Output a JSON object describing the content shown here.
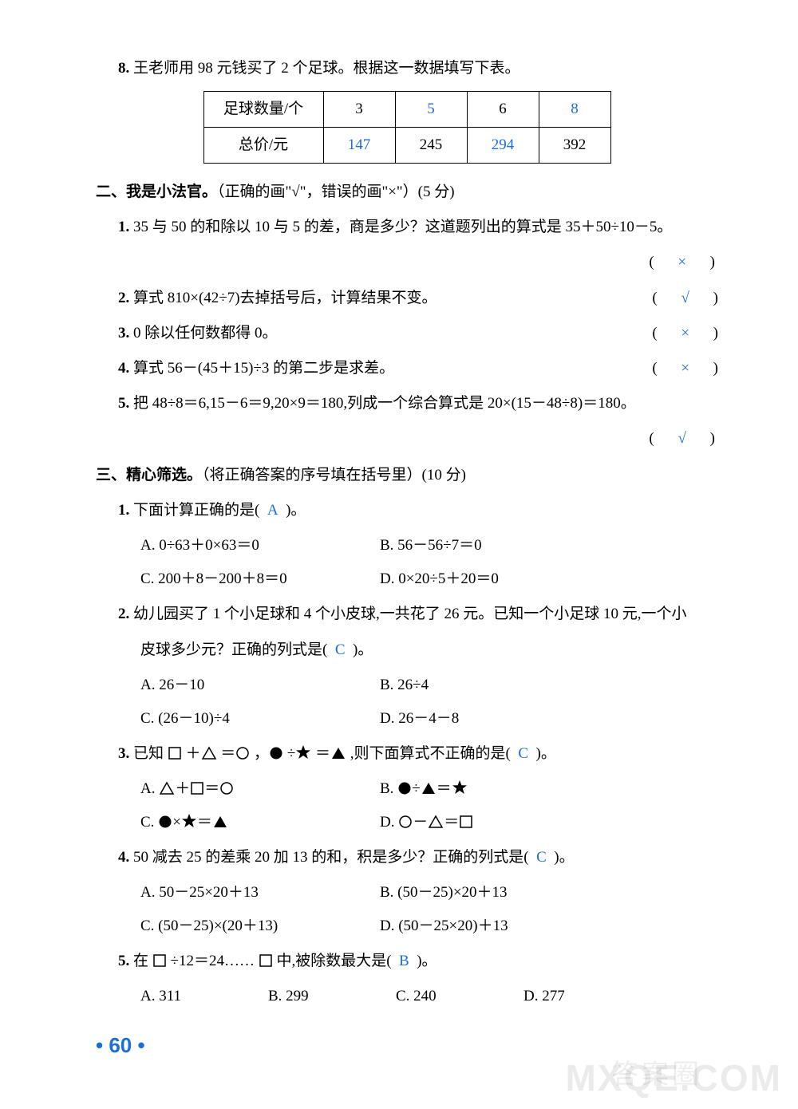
{
  "q8": {
    "num": "8.",
    "text": "王老师用 98 元钱买了 2 个足球。根据这一数据填写下表。",
    "table": {
      "row1_head": "足球数量/个",
      "row2_head": "总价/元",
      "cells": [
        {
          "qty": "3",
          "price": "147",
          "qty_blue": false,
          "price_blue": true
        },
        {
          "qty": "5",
          "price": "245",
          "qty_blue": true,
          "price_blue": false
        },
        {
          "qty": "6",
          "price": "294",
          "qty_blue": false,
          "price_blue": true
        },
        {
          "qty": "8",
          "price": "392",
          "qty_blue": true,
          "price_blue": false
        }
      ]
    }
  },
  "sec2": {
    "title": "二、我是小法官。",
    "subtitle": "（正确的画\"√\"，错误的画\"×\"）(5 分)",
    "items": [
      {
        "num": "1.",
        "text": "35 与 50 的和除以 10 与 5 的差，商是多少？这道题列出的算式是 35＋50÷10－5。",
        "ans": "×",
        "ans_below": true
      },
      {
        "num": "2.",
        "text": "算式 810×(42÷7)去掉括号后，计算结果不变。",
        "ans": "√",
        "ans_below": false
      },
      {
        "num": "3.",
        "text": "0 除以任何数都得 0。",
        "ans": "×",
        "ans_below": false
      },
      {
        "num": "4.",
        "text": "算式 56－(45＋15)÷3 的第二步是求差。",
        "ans": "×",
        "ans_below": false
      },
      {
        "num": "5.",
        "text": "把 48÷8＝6,15－6＝9,20×9＝180,列成一个综合算式是 20×(15－48÷8)＝180。",
        "ans": "√",
        "ans_below": true
      }
    ]
  },
  "sec3": {
    "title": "三、精心筛选。",
    "subtitle": "（将正确答案的序号填在括号里）(10 分)",
    "q1": {
      "num": "1.",
      "stem_a": "下面计算正确的是(",
      "ans": "A",
      "stem_b": ")。",
      "opts": [
        {
          "l": "A. 0÷63＋0×63＝0",
          "r": "B. 56－56÷7＝0"
        },
        {
          "l": "C. 200＋8－200＋8＝0",
          "r": "D. 0×20÷5＋20＝0"
        }
      ]
    },
    "q2": {
      "num": "2.",
      "line1": "幼儿园买了 1 个小足球和 4 个小皮球,一共花了 26 元。已知一个小足球 10 元,一个小",
      "line2_a": "皮球多少元？正确的列式是(",
      "ans": "C",
      "line2_b": ")。",
      "opts": [
        {
          "l": "A. 26－10",
          "r": "B. 26÷4"
        },
        {
          "l": "C. (26－10)÷4",
          "r": "D. 26－4－8"
        }
      ]
    },
    "q3": {
      "num": "3.",
      "stem_a": "已知",
      "stem_b": ",则下面算式不正确的是(",
      "ans": "C",
      "stem_c": ")。"
    },
    "q4": {
      "num": "4.",
      "stem_a": "50 减去 25 的差乘 20 加 13 的和，积是多少？正确的列式是(",
      "ans": "C",
      "stem_b": ")。",
      "opts": [
        {
          "l": "A. 50－25×20＋13",
          "r": "B. (50－25)×20＋13"
        },
        {
          "l": "C. (50－25)×(20＋13)",
          "r": "D. (50－25×20)＋13"
        }
      ]
    },
    "q5": {
      "num": "5.",
      "stem_a": "在",
      "stem_b": "÷12＝24……",
      "stem_c": "中,被除数最大是(",
      "ans": "B",
      "stem_d": ")。",
      "opts": {
        "a": "A. 311",
        "b": "B. 299",
        "c": "C. 240",
        "d": "D. 277"
      }
    }
  },
  "pagenum": "60",
  "watermark_en": "MXQE.COM",
  "watermark_cn": "答案圈"
}
